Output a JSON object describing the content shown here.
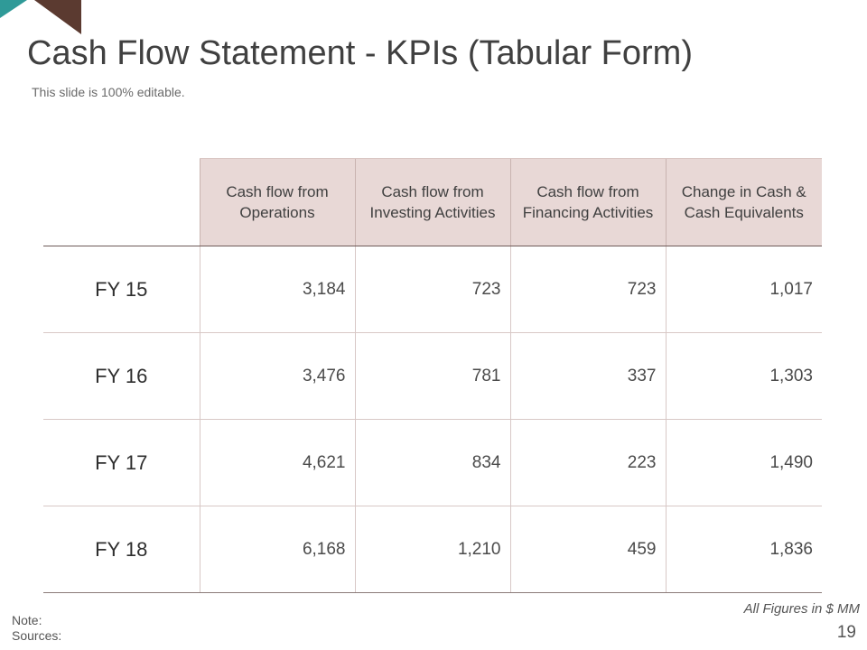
{
  "slide": {
    "title": "Cash Flow Statement - KPIs (Tabular Form)",
    "subtitle": "This slide is 100% editable.",
    "units_note": "All Figures in $ MM",
    "note_label": "Note:",
    "sources_label": "Sources:",
    "page_number": "19",
    "colors": {
      "accent_teal": "#2f9a98",
      "accent_brown": "#5b3a30",
      "header_bg": "#e8d8d6"
    }
  },
  "table": {
    "columns": [
      [
        "Cash flow from",
        "Operations"
      ],
      [
        "Cash flow from",
        "Investing Activities"
      ],
      [
        "Cash flow from",
        "Financing Activities"
      ],
      [
        "Change in Cash &",
        "Cash Equivalents"
      ]
    ],
    "rows": [
      {
        "label": "FY 15",
        "values": [
          "3,184",
          "723",
          "723",
          "1,017"
        ]
      },
      {
        "label": "FY 16",
        "values": [
          "3,476",
          "781",
          "337",
          "1,303"
        ]
      },
      {
        "label": "FY 17",
        "values": [
          "4,621",
          "834",
          "223",
          "1,490"
        ]
      },
      {
        "label": "FY 18",
        "values": [
          "6,168",
          "1,210",
          "459",
          "1,836"
        ]
      }
    ]
  }
}
